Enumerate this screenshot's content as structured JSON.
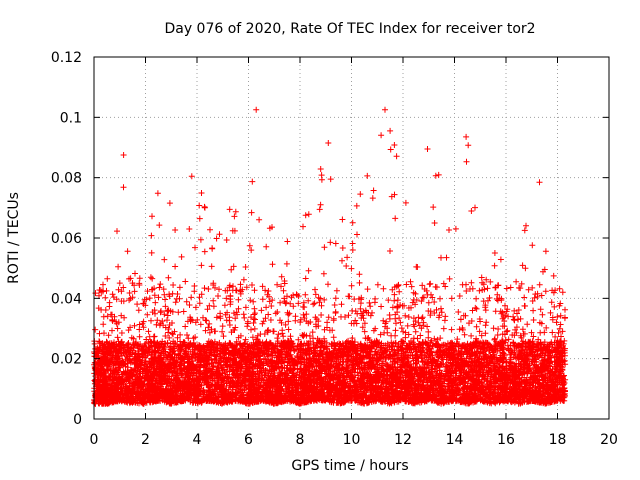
{
  "chart_data": {
    "type": "scatter",
    "title": "Day 076 of 2020, Rate Of TEC Index for receiver tor2",
    "xlabel": "GPS time / hours",
    "ylabel": "ROTI / TECUs",
    "xlim": [
      0,
      20
    ],
    "ylim": [
      0,
      0.12
    ],
    "x_ticks": [
      "0",
      "2",
      "4",
      "6",
      "8",
      "10",
      "12",
      "14",
      "16",
      "18",
      "20"
    ],
    "y_ticks": [
      "0",
      "0.02",
      "0.04",
      "0.06",
      "0.08",
      "0.1",
      "0.12"
    ],
    "grid": true,
    "marker": "+",
    "color": "#ff0000",
    "envelope": {
      "x": [
        0.0,
        0.5,
        1.0,
        1.5,
        2.0,
        2.5,
        3.0,
        3.5,
        4.0,
        4.5,
        5.0,
        5.5,
        6.0,
        6.5,
        7.0,
        7.5,
        8.0,
        8.5,
        9.0,
        9.5,
        10.0,
        10.5,
        11.0,
        11.5,
        12.0,
        12.5,
        13.0,
        13.5,
        14.0,
        14.5,
        15.0,
        15.5,
        16.0,
        16.5,
        17.0,
        17.5,
        18.0,
        18.3
      ],
      "y_low": [
        0.005,
        0.005,
        0.006,
        0.005,
        0.005,
        0.006,
        0.005,
        0.006,
        0.005,
        0.006,
        0.005,
        0.006,
        0.005,
        0.006,
        0.005,
        0.006,
        0.005,
        0.006,
        0.006,
        0.005,
        0.006,
        0.005,
        0.006,
        0.005,
        0.006,
        0.005,
        0.006,
        0.005,
        0.006,
        0.005,
        0.006,
        0.005,
        0.006,
        0.005,
        0.006,
        0.005,
        0.006,
        0.006
      ],
      "y_high": [
        0.048,
        0.052,
        0.088,
        0.05,
        0.062,
        0.076,
        0.077,
        0.062,
        0.08,
        0.07,
        0.065,
        0.075,
        0.07,
        0.103,
        0.065,
        0.062,
        0.078,
        0.075,
        0.092,
        0.075,
        0.072,
        0.08,
        0.103,
        0.095,
        0.085,
        0.065,
        0.089,
        0.085,
        0.075,
        0.094,
        0.055,
        0.055,
        0.06,
        0.05,
        0.079,
        0.057,
        0.045,
        0.02
      ]
    },
    "notable_points": [
      {
        "x": 1.15,
        "y": 0.0875
      },
      {
        "x": 3.8,
        "y": 0.0805
      },
      {
        "x": 6.3,
        "y": 0.1025
      },
      {
        "x": 9.1,
        "y": 0.0915
      },
      {
        "x": 11.3,
        "y": 0.1025
      },
      {
        "x": 11.5,
        "y": 0.0955
      },
      {
        "x": 12.95,
        "y": 0.0895
      },
      {
        "x": 14.45,
        "y": 0.0935
      },
      {
        "x": 17.3,
        "y": 0.0785
      }
    ]
  }
}
